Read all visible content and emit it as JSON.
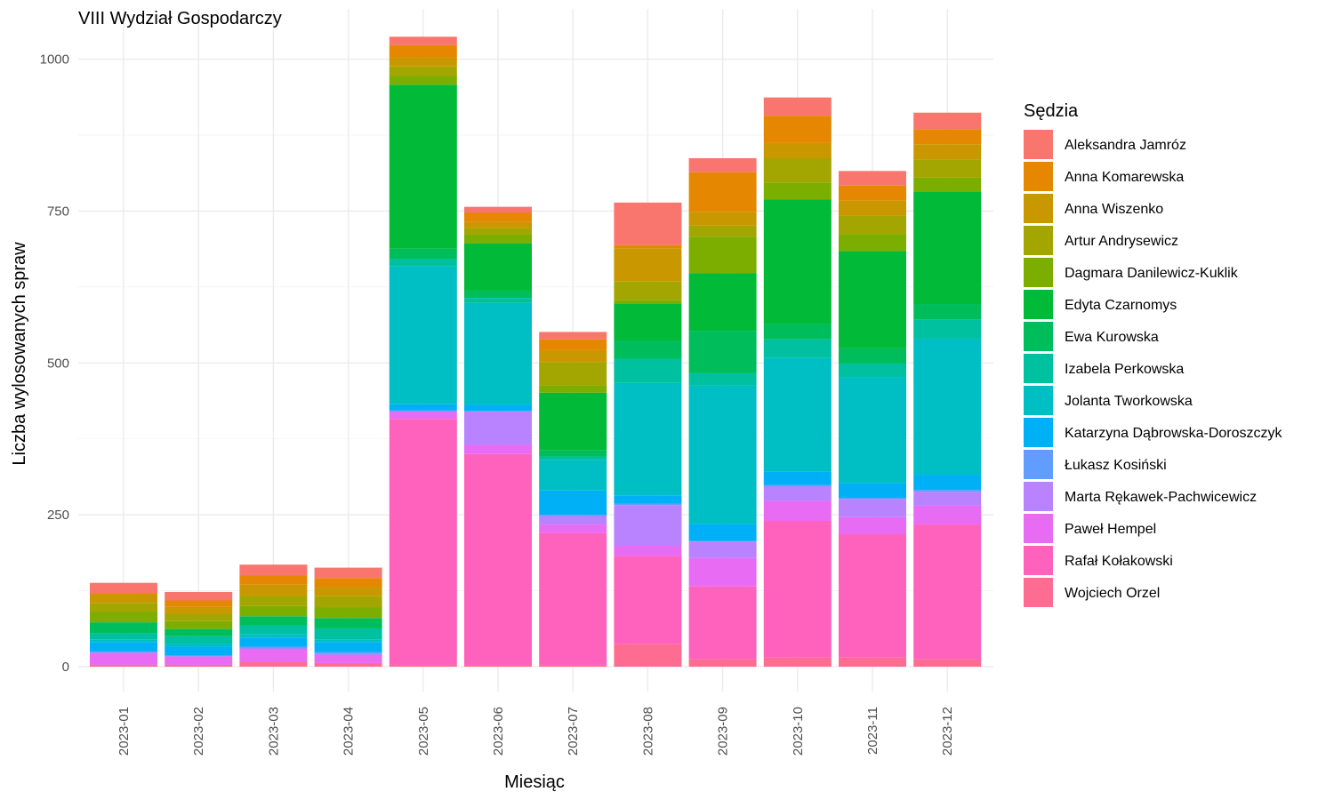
{
  "chart_data": {
    "type": "bar",
    "stacked": true,
    "title": "VIII Wydział Gospodarczy",
    "xlabel": "Miesiąc",
    "ylabel": "Liczba wylosowanych spraw",
    "ylim": [
      0,
      1030
    ],
    "yticks": [
      0,
      250,
      500,
      750,
      1000
    ],
    "yticks_labels": [
      "0",
      "250",
      "500",
      "750",
      "1000"
    ],
    "grid": true,
    "legend_title": "Sędzia",
    "legend_position": "right",
    "categories": [
      "2023-01",
      "2023-02",
      "2023-03",
      "2023-04",
      "2023-05",
      "2023-06",
      "2023-07",
      "2023-08",
      "2023-09",
      "2023-10",
      "2023-11",
      "2023-12"
    ],
    "series": [
      {
        "name": "Wojciech Orzel",
        "color": "#FF6C91",
        "values": [
          3,
          3,
          8,
          6,
          3,
          3,
          3,
          37,
          12,
          15,
          15,
          12
        ]
      },
      {
        "name": "Rafał Kołakowski",
        "color": "#FF62BC",
        "values": [
          0,
          0,
          0,
          0,
          405,
          347,
          217,
          145,
          120,
          225,
          203,
          222
        ]
      },
      {
        "name": "Paweł Hempel",
        "color": "#E76BF3",
        "values": [
          20,
          14,
          22,
          13,
          12,
          15,
          14,
          17,
          47,
          33,
          28,
          31
        ]
      },
      {
        "name": "Marta Rękawek-Pachwicewicz",
        "color": "#B983FF",
        "values": [
          0,
          0,
          0,
          2,
          0,
          55,
          14,
          67,
          27,
          24,
          30,
          23
        ]
      },
      {
        "name": "Łukasz Kosiński",
        "color": "#619CFF",
        "values": [
          2,
          2,
          3,
          3,
          2,
          1,
          2,
          2,
          1,
          2,
          2,
          3
        ]
      },
      {
        "name": "Katarzyna Dąbrowska-Doroszczyk",
        "color": "#00B0F6",
        "values": [
          15,
          14,
          15,
          16,
          10,
          10,
          40,
          14,
          28,
          22,
          24,
          25
        ]
      },
      {
        "name": "Jolanta Tworkowska",
        "color": "#00BFC4",
        "values": [
          5,
          5,
          5,
          5,
          227,
          168,
          50,
          185,
          228,
          188,
          175,
          224
        ]
      },
      {
        "name": "Izabela Perkowska",
        "color": "#00C19F",
        "values": [
          10,
          12,
          15,
          18,
          12,
          8,
          6,
          40,
          20,
          30,
          22,
          32
        ]
      },
      {
        "name": "Ewa Kurowska",
        "color": "#00BD5C",
        "values": [
          18,
          12,
          15,
          17,
          17,
          12,
          10,
          30,
          70,
          25,
          25,
          25
        ]
      },
      {
        "name": "Edyta Czarnomys",
        "color": "#00BA38",
        "values": [
          0,
          0,
          0,
          0,
          270,
          78,
          95,
          60,
          95,
          205,
          160,
          185
        ]
      },
      {
        "name": "Dagmara Danilewicz-Kuklik",
        "color": "#7CAE00",
        "values": [
          17,
          13,
          17,
          18,
          15,
          15,
          12,
          7,
          60,
          28,
          28,
          23
        ]
      },
      {
        "name": "Artur Andrysewicz",
        "color": "#A3A500",
        "values": [
          15,
          12,
          17,
          18,
          15,
          10,
          38,
          30,
          18,
          40,
          30,
          30
        ]
      },
      {
        "name": "Anna Wiszenko",
        "color": "#C99800",
        "values": [
          15,
          12,
          18,
          15,
          15,
          10,
          20,
          55,
          23,
          25,
          25,
          25
        ]
      },
      {
        "name": "Anna Komarewska",
        "color": "#E58700",
        "values": [
          0,
          10,
          15,
          15,
          20,
          15,
          18,
          5,
          65,
          45,
          25,
          25
        ]
      },
      {
        "name": "Aleksandra Jamróz",
        "color": "#F8766D",
        "values": [
          18,
          14,
          18,
          17,
          14,
          10,
          12,
          70,
          23,
          30,
          24,
          27
        ]
      }
    ],
    "legend_order": [
      "Aleksandra Jamróz",
      "Anna Komarewska",
      "Anna Wiszenko",
      "Artur Andrysewicz",
      "Dagmara Danilewicz-Kuklik",
      "Edyta Czarnomys",
      "Ewa Kurowska",
      "Izabela Perkowska",
      "Jolanta Tworkowska",
      "Katarzyna Dąbrowska-Doroszczyk",
      "Łukasz Kosiński",
      "Marta Rękawek-Pachwicewicz",
      "Paweł Hempel",
      "Rafał Kołakowski",
      "Wojciech Orzel"
    ]
  }
}
